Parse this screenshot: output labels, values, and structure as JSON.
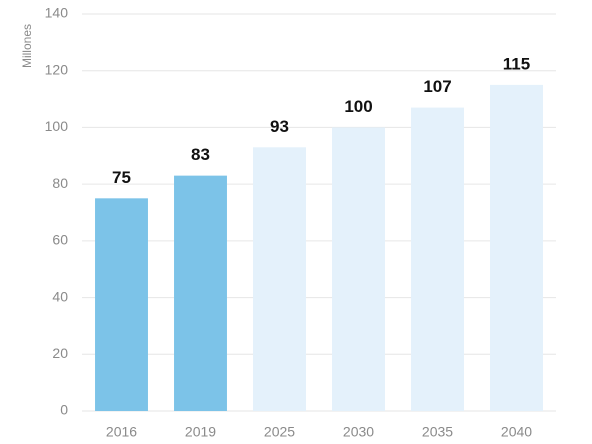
{
  "chart_data": {
    "type": "bar",
    "y_label": "Millones",
    "categories": [
      "2016",
      "2019",
      "2025",
      "2030",
      "2035",
      "2040"
    ],
    "values": [
      75,
      83,
      93,
      100,
      107,
      115
    ],
    "colors": [
      "#7cc3e8",
      "#7cc3e8",
      "#e4f1fb",
      "#e4f1fb",
      "#e4f1fb",
      "#e4f1fb"
    ],
    "ylim": [
      0,
      140
    ],
    "yticks": [
      0,
      20,
      40,
      60,
      80,
      100,
      120,
      140
    ],
    "grid": true
  }
}
